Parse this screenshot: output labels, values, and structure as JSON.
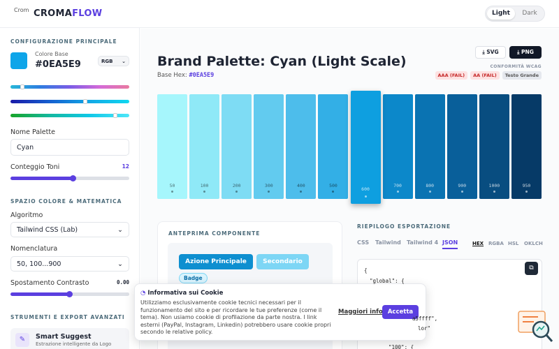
{
  "header": {
    "logo_alt": "Crom",
    "brand_a": "CROMA",
    "brand_b": "FLOW",
    "theme_options": [
      "Light",
      "Dark"
    ]
  },
  "sidebar": {
    "section_main": "CONFIGURAZIONE PRINCIPALE",
    "base_color_label": "Colore Base",
    "base_color": "#0EA5E9",
    "color_mode": "RGB",
    "palette_name_label": "Nome Palette",
    "palette_name": "Cyan",
    "tone_count_label": "Conteggio Toni",
    "tone_count": 12,
    "section_math": "SPAZIO COLORE & MATEMATICA",
    "algorithm_label": "Algoritmo",
    "algorithm": "Tailwind CSS (Lab)",
    "naming_label": "Nomenclatura",
    "naming": "50, 100...900",
    "contrast_label": "Spostamento Contrasto",
    "contrast": "0.00",
    "section_tools": "STRUMENTI E EXPORT AVANZATI",
    "tool_title": "Smart Suggest",
    "tool_desc": "Estrazione intelligente da Logo"
  },
  "main": {
    "title": "Brand Palette: Cyan (Light Scale)",
    "base_hex_label": "Base Hex:",
    "base_hex": "#0EA5E9",
    "export_buttons": [
      "SVG",
      "PNG"
    ],
    "wcag_label": "CONFORMITÀ WCAG",
    "wcag_badges": [
      "AAA (FAIL)",
      "AA (FAIL)",
      "Testo Grande"
    ],
    "swatches": [
      {
        "label": "50",
        "color": "#a6f6fc"
      },
      {
        "label": "100",
        "color": "#8fe9f7"
      },
      {
        "label": "200",
        "color": "#7edcf4"
      },
      {
        "label": "300",
        "color": "#62cbef"
      },
      {
        "label": "400",
        "color": "#4dbdeb"
      },
      {
        "label": "500",
        "color": "#33afe6"
      },
      {
        "label": "600",
        "color": "#0e9fe0",
        "active": true
      },
      {
        "label": "700",
        "color": "#0c88ca"
      },
      {
        "label": "800",
        "color": "#0a73b2"
      },
      {
        "label": "900",
        "color": "#095f9a"
      },
      {
        "label": "1000",
        "color": "#084d80"
      },
      {
        "label": "950",
        "color": "#063a67"
      }
    ]
  },
  "preview": {
    "title": "ANTEPRIMA COMPONENTE",
    "primary_button": "Azione Principale",
    "secondary_button": "Secondario",
    "badge": "Badge"
  },
  "export": {
    "title": "RIEPILOGO ESPORTAZIONE",
    "tabs": [
      "CSS",
      "Tailwind",
      "Tailwind 4",
      "JSON"
    ],
    "formats": [
      "HEX",
      "RGBA",
      "HSL",
      "OKLCH"
    ],
    "code_lines": [
      "{",
      "\"global\": {",
      "a5ffff\",",
      "lor\"",
      "\"100\": {"
    ]
  },
  "cookie": {
    "title": "Informativa sui Cookie",
    "text": "Utilizziamo esclusivamente cookie tecnici necessari per il funzionamento del sito e per ricordare le tue preferenze (come il tema). Non usiamo cookie di profilazione da parte nostra. I link esterni (PayPal, Instagram, Linkedin) potrebbero usare cookie propri secondo le relative policy.",
    "more": "Maggiori info",
    "accept": "Accetta"
  }
}
